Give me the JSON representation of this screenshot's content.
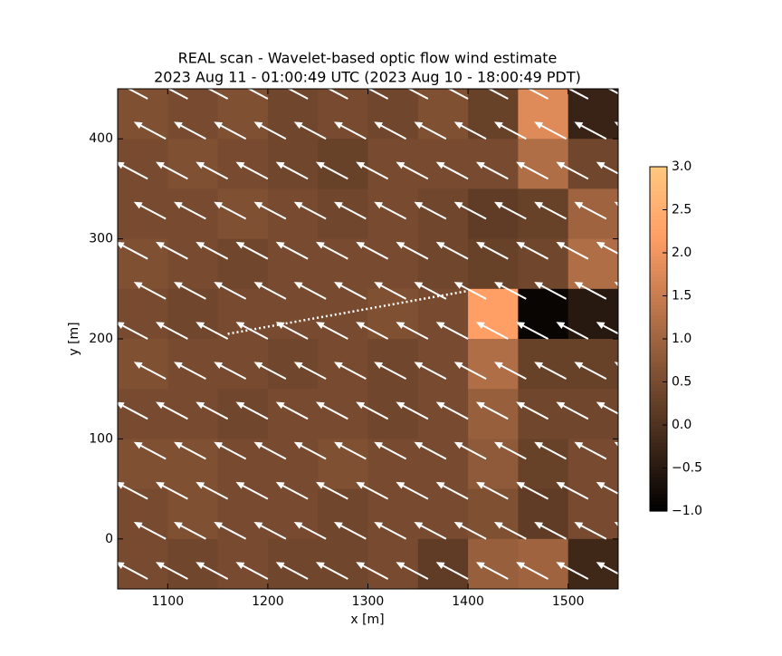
{
  "chart_data": {
    "type": "heatmap",
    "title": "REAL scan - Wavelet-based optic flow wind estimate",
    "subtitle": "2023 Aug 11 - 01:00:49 UTC (2023 Aug 10 - 18:00:49 PDT)",
    "xlabel": "x [m]",
    "ylabel": "y [m]",
    "xlim": [
      1050,
      1550
    ],
    "ylim": [
      -50,
      450
    ],
    "xticks": [
      1100,
      1200,
      1300,
      1400,
      1500
    ],
    "yticks": [
      0,
      100,
      200,
      300,
      400
    ],
    "colormap": "copper",
    "clim": [
      -1,
      3
    ],
    "cticks": [
      {
        "value": -1,
        "label": "−1.0"
      },
      {
        "value": -0.5,
        "label": "−0.5"
      },
      {
        "value": 0,
        "label": "0.0"
      },
      {
        "value": 0.5,
        "label": "0.5"
      },
      {
        "value": 1,
        "label": "1.0"
      },
      {
        "value": 1.5,
        "label": "1.5"
      },
      {
        "value": 2,
        "label": "2.0"
      },
      {
        "value": 2.5,
        "label": "2.5"
      },
      {
        "value": 3,
        "label": "3.0"
      }
    ],
    "heatmap": {
      "x_edges": [
        1050,
        1100,
        1150,
        1200,
        1250,
        1300,
        1350,
        1400,
        1450,
        1500,
        1550
      ],
      "y_edges": [
        450,
        400,
        350,
        300,
        250,
        200,
        150,
        100,
        50,
        0,
        -50
      ],
      "values": [
        [
          0.6,
          0.5,
          0.6,
          0.4,
          0.5,
          0.4,
          0.6,
          0.3,
          1.8,
          -0.3
        ],
        [
          0.5,
          0.6,
          0.5,
          0.4,
          0.3,
          0.5,
          0.5,
          0.5,
          1.2,
          0.4
        ],
        [
          0.5,
          0.5,
          0.6,
          0.5,
          0.4,
          0.5,
          0.4,
          0.2,
          0.3,
          1.0
        ],
        [
          0.6,
          0.5,
          0.4,
          0.5,
          0.5,
          0.5,
          0.4,
          0.3,
          0.4,
          1.2
        ],
        [
          0.5,
          0.4,
          0.5,
          0.5,
          0.5,
          0.6,
          0.5,
          2.2,
          -0.9,
          -0.5
        ],
        [
          0.6,
          0.5,
          0.5,
          0.4,
          0.5,
          0.4,
          0.5,
          1.2,
          0.3,
          0.3
        ],
        [
          0.5,
          0.5,
          0.4,
          0.5,
          0.5,
          0.4,
          0.5,
          0.9,
          0.4,
          0.4
        ],
        [
          0.6,
          0.6,
          0.5,
          0.5,
          0.6,
          0.5,
          0.5,
          0.8,
          0.3,
          0.5
        ],
        [
          0.5,
          0.6,
          0.5,
          0.5,
          0.4,
          0.5,
          0.5,
          0.6,
          0.2,
          0.5
        ],
        [
          0.5,
          0.4,
          0.5,
          0.4,
          0.4,
          0.5,
          0.2,
          0.9,
          1.0,
          -0.2
        ]
      ]
    },
    "arrows": {
      "color": "#ffffff",
      "x": [
        1080,
        1120,
        1160,
        1200,
        1240,
        1280,
        1320,
        1360,
        1400,
        1440,
        1480,
        1520,
        1560
      ],
      "y": [
        -40,
        0,
        40,
        80,
        120,
        160,
        200,
        240,
        280,
        320,
        360,
        400,
        440
      ],
      "u": -32,
      "v": 17
    },
    "line": {
      "color": "#ffffff",
      "x": [
        1160,
        1400
      ],
      "y": [
        205,
        248
      ]
    }
  }
}
